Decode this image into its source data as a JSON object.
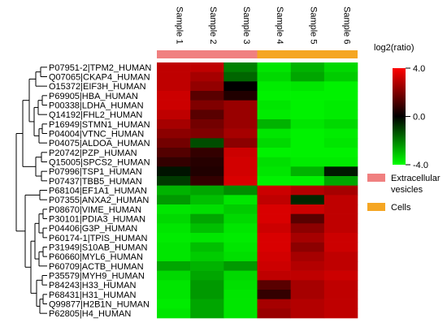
{
  "chart_data": {
    "type": "heatmap",
    "samples": [
      "Sample 1",
      "Sample 2",
      "Sample 3",
      "Sample 4",
      "Sample 5",
      "Sample 6"
    ],
    "groups": [
      {
        "name": "Extracellular vesicles",
        "color": "#f08080",
        "samples": [
          "Sample 1",
          "Sample 2",
          "Sample 3"
        ]
      },
      {
        "name": "Cells",
        "color": "#f5a623",
        "samples": [
          "Sample 4",
          "Sample 5",
          "Sample 6"
        ]
      }
    ],
    "colorbar": {
      "title": "log2(ratio)",
      "range": [
        -4.0,
        4.0
      ],
      "tick_values": [
        4.0,
        0.0,
        -4.0
      ],
      "tick_labels": [
        "4.0",
        "0.0",
        "-4.0"
      ],
      "colors": {
        "high": "#ff0000",
        "mid": "#000000",
        "low": "#00ff00"
      }
    },
    "rows": [
      {
        "label": "P07951-2|TPM2_HUMAN",
        "values": [
          3.0,
          3.0,
          -2.0,
          -3.6,
          -2.8,
          -3.4
        ]
      },
      {
        "label": "Q07065|CKAP4_HUMAN",
        "values": [
          3.0,
          2.6,
          -1.6,
          -3.4,
          -2.6,
          -3.2
        ]
      },
      {
        "label": "O15372|EIF3H_HUMAN",
        "values": [
          3.0,
          2.3,
          0.0,
          -3.7,
          -3.6,
          -3.8
        ]
      },
      {
        "label": "P69905|HBA_HUMAN",
        "values": [
          3.2,
          1.4,
          0.5,
          -3.8,
          -3.8,
          -3.8
        ]
      },
      {
        "label": "P00338|LDHA_HUMAN",
        "values": [
          3.2,
          2.0,
          2.4,
          -3.6,
          -3.8,
          -3.7
        ]
      },
      {
        "label": "Q14192|FHL2_HUMAN",
        "values": [
          3.0,
          1.4,
          2.4,
          -3.7,
          -3.8,
          -3.7
        ]
      },
      {
        "label": "P16949|STMN1_HUMAN",
        "values": [
          2.6,
          1.8,
          2.4,
          -2.8,
          -3.6,
          -3.4
        ]
      },
      {
        "label": "P04004|VTNC_HUMAN",
        "values": [
          2.2,
          2.0,
          2.6,
          -3.6,
          -3.8,
          -3.7
        ]
      },
      {
        "label": "P04075|ALDOA_HUMAN",
        "values": [
          1.8,
          -1.2,
          2.2,
          -3.4,
          -3.8,
          -3.6
        ]
      },
      {
        "label": "P20742|PZP_HUMAN",
        "values": [
          1.3,
          0.8,
          3.2,
          -3.8,
          -3.8,
          -3.8
        ]
      },
      {
        "label": "Q15005|SPCS2_HUMAN",
        "values": [
          0.8,
          0.6,
          3.3,
          -3.5,
          -3.7,
          -3.7
        ]
      },
      {
        "label": "P07996|TSP1_HUMAN",
        "values": [
          -0.3,
          0.5,
          3.3,
          -3.6,
          -2.8,
          -0.4
        ]
      },
      {
        "label": "P07437|TBB5_HUMAN",
        "values": [
          -0.9,
          0.8,
          3.4,
          -3.8,
          -3.8,
          -2.6
        ]
      },
      {
        "label": "P68104|EF1A1_HUMAN",
        "values": [
          -2.8,
          -2.6,
          -2.2,
          3.2,
          2.8,
          2.6
        ]
      },
      {
        "label": "P07355|ANXA2_HUMAN",
        "values": [
          -2.4,
          -3.0,
          -3.6,
          3.0,
          -0.6,
          3.0
        ]
      },
      {
        "label": "P08670|VIME_HUMAN",
        "values": [
          -3.6,
          -3.5,
          -3.2,
          3.4,
          3.2,
          3.0
        ]
      },
      {
        "label": "P30101|PDIA3_HUMAN",
        "values": [
          -3.4,
          -2.6,
          -3.4,
          3.4,
          1.4,
          3.0
        ]
      },
      {
        "label": "P04406|G3P_HUMAN",
        "values": [
          -3.6,
          -3.0,
          -3.6,
          3.2,
          2.2,
          3.0
        ]
      },
      {
        "label": "P60174-1|TPIS_HUMAN",
        "values": [
          -3.7,
          -3.6,
          -3.7,
          3.4,
          2.6,
          3.2
        ]
      },
      {
        "label": "P31949|S10AB_HUMAN",
        "values": [
          -3.6,
          -3.0,
          -3.6,
          3.4,
          2.2,
          3.2
        ]
      },
      {
        "label": "P60660|MYL6_HUMAN",
        "values": [
          -3.6,
          -3.2,
          -3.5,
          3.3,
          2.6,
          3.0
        ]
      },
      {
        "label": "P60709|ACTB_HUMAN",
        "values": [
          -2.6,
          -2.8,
          -2.4,
          3.2,
          2.8,
          3.0
        ]
      },
      {
        "label": "P35579|MYH9_HUMAN",
        "values": [
          -3.4,
          -2.6,
          -3.4,
          3.0,
          3.0,
          3.2
        ]
      },
      {
        "label": "P84243|H33_HUMAN",
        "values": [
          -3.6,
          -2.4,
          -3.5,
          1.4,
          2.6,
          3.0
        ]
      },
      {
        "label": "P68431|H31_HUMAN",
        "values": [
          -3.6,
          -2.4,
          -3.6,
          0.8,
          2.6,
          3.0
        ]
      },
      {
        "label": "Q99877|H2B1N_HUMAN",
        "values": [
          -3.7,
          -2.6,
          -3.6,
          2.6,
          2.8,
          3.0
        ]
      },
      {
        "label": "P62805|H4_HUMAN",
        "values": [
          -3.6,
          -2.6,
          -3.6,
          2.4,
          2.8,
          3.0
        ]
      }
    ]
  }
}
